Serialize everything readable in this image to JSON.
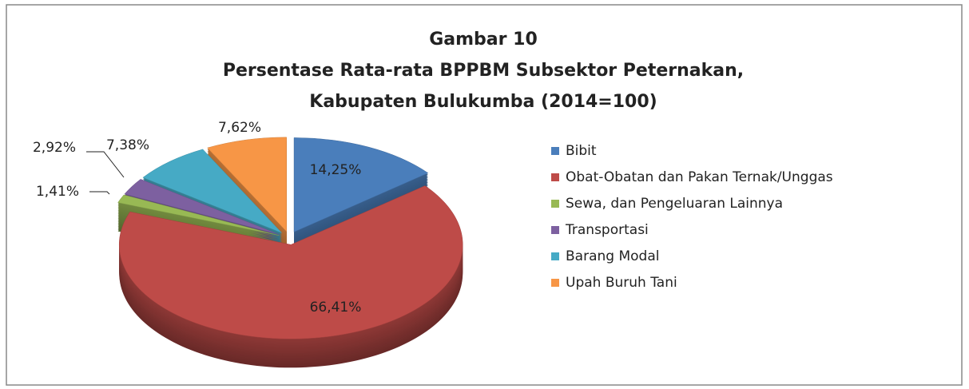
{
  "chart_data": {
    "type": "pie",
    "title": [
      "Gambar 10",
      "Persentase Rata-rata BPPBM  Subsektor Peternakan,",
      "Kabupaten Bulukumba  (2014=100)"
    ],
    "categories": [
      "Bibit",
      "Obat-Obatan dan Pakan Ternak/Unggas",
      "Sewa, dan Pengeluaran Lainnya",
      "Transportasi",
      "Barang Modal",
      "Upah Buruh Tani"
    ],
    "values": [
      14.25,
      66.41,
      1.41,
      2.92,
      7.38,
      7.62
    ],
    "value_labels": [
      "14,25%",
      "66,41%",
      "1,41%",
      "2,92%",
      "7,38%",
      "7,62%"
    ],
    "colors": [
      "#4a7ebb",
      "#be4b48",
      "#98b954",
      "#7d60a0",
      "#46aac5",
      "#f79646"
    ],
    "legend": "right"
  }
}
